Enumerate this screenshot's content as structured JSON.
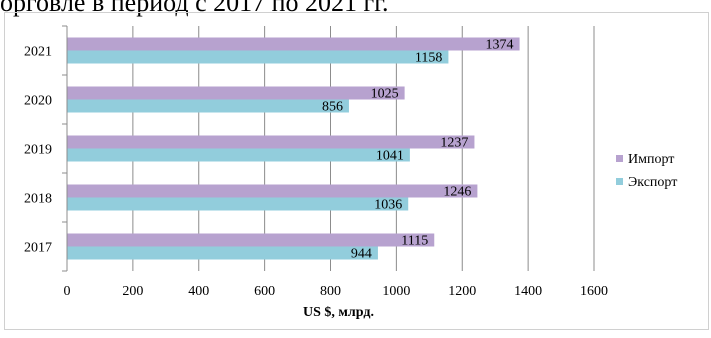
{
  "caption": "орговле в период с 2017 по 2021 гг.",
  "chart_data": {
    "type": "bar",
    "orientation": "horizontal",
    "categories": [
      "2017",
      "2018",
      "2019",
      "2020",
      "2021"
    ],
    "series": [
      {
        "name": "Импорт",
        "values": [
          1115,
          1246,
          1237,
          1025,
          1374
        ],
        "color": "#b7a2cf"
      },
      {
        "name": "Экспорт",
        "values": [
          944,
          1036,
          1041,
          856,
          1158
        ],
        "color": "#92cddc"
      }
    ],
    "xlabel": "US $, млрд.",
    "ylabel": "",
    "xlim": [
      0,
      1600
    ],
    "xticks": [
      "0",
      "200",
      "400",
      "600",
      "800",
      "1000",
      "1200",
      "1400",
      "1600"
    ],
    "grid": true,
    "legend_position": "right"
  }
}
